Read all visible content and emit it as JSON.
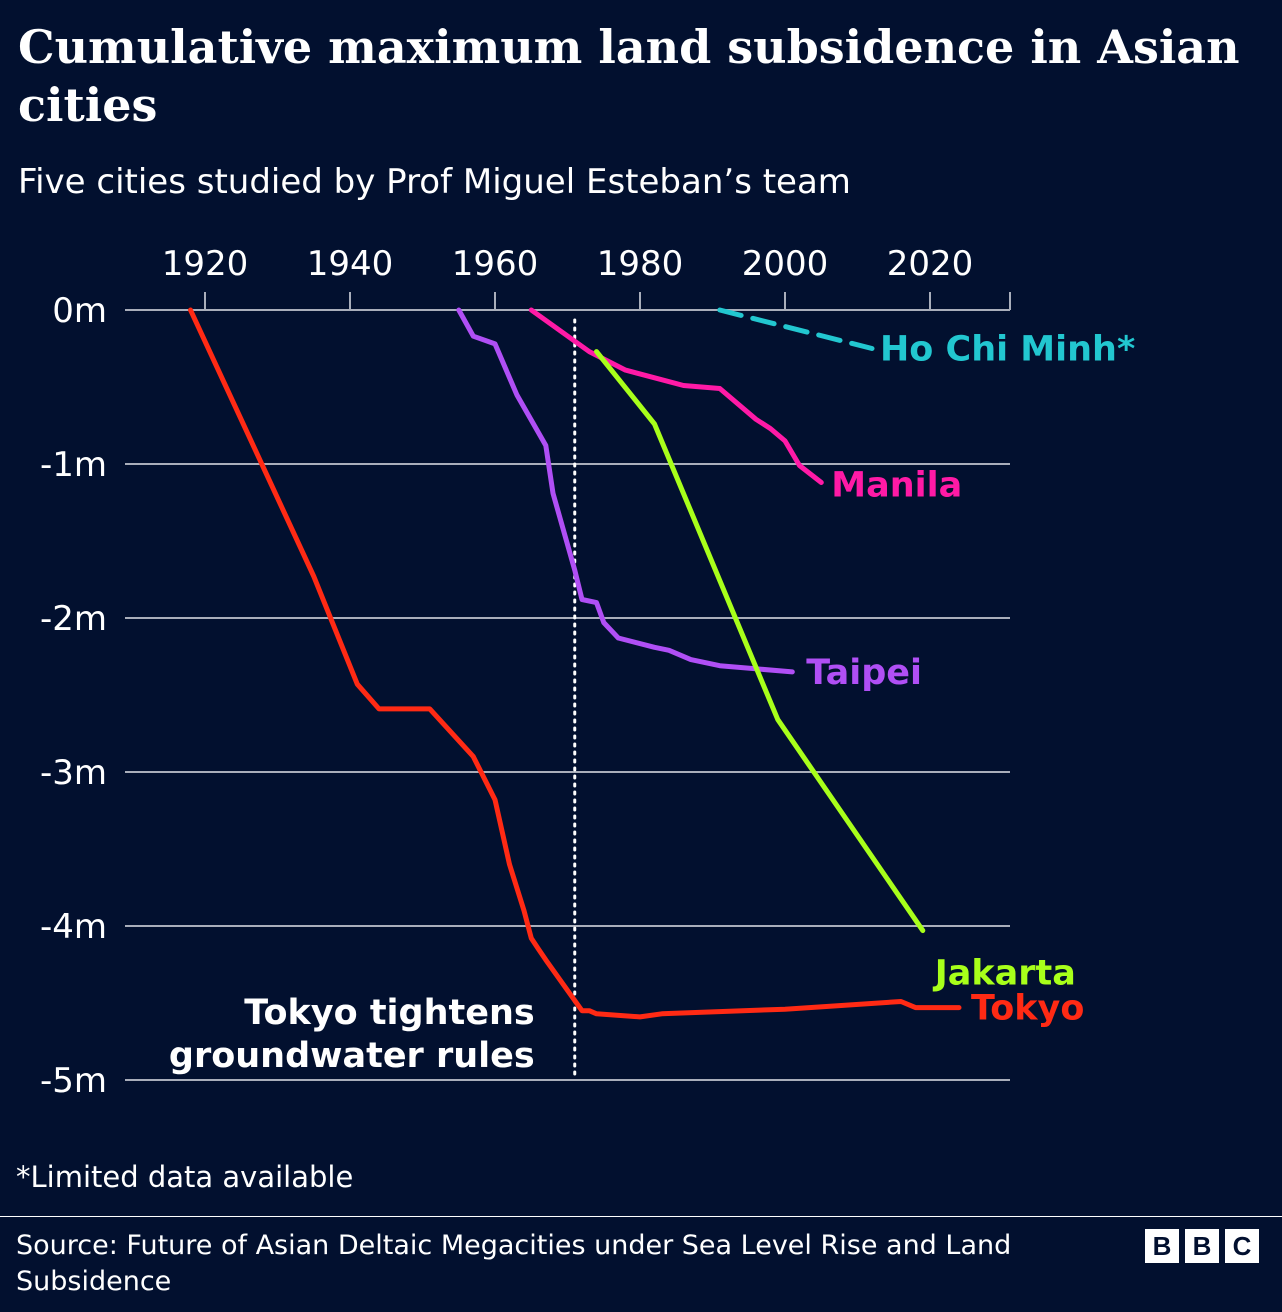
{
  "title": "Cumulative maximum land subsidence in Asian cities",
  "subtitle": "Five cities studied by Prof Miguel Esteban’s team",
  "footnote": "*Limited data available",
  "source": "Source: Future of Asian Deltaic Megacities under Sea Level Rise and Land Subsidence",
  "logo": [
    "B",
    "B",
    "C"
  ],
  "chart_data": {
    "type": "line",
    "title": "Cumulative maximum land subsidence in Asian cities",
    "xlabel": "",
    "ylabel": "",
    "xlim": [
      1908,
      2027
    ],
    "ylim": [
      -5,
      0
    ],
    "x_ticks": [
      1920,
      1940,
      1960,
      1980,
      2000,
      2020
    ],
    "y_ticks": [
      0,
      -1,
      -2,
      -3,
      -4,
      -5
    ],
    "y_tick_labels": [
      "0m",
      "-1m",
      "-2m",
      "-3m",
      "-4m",
      "-5m"
    ],
    "grid": true,
    "series": [
      {
        "name": "Tokyo",
        "color": "#ff2a14",
        "dashed": false,
        "x": [
          1918,
          1935,
          1941,
          1944,
          1951,
          1957,
          1960,
          1962,
          1964,
          1965,
          1966,
          1967,
          1972,
          1973,
          1974,
          1980,
          1983,
          2000,
          2016,
          2018,
          2024
        ],
        "y": [
          0,
          -1.73,
          -2.43,
          -2.59,
          -2.59,
          -2.9,
          -3.18,
          -3.6,
          -3.9,
          -4.08,
          -4.15,
          -4.22,
          -4.55,
          -4.55,
          -4.57,
          -4.59,
          -4.57,
          -4.54,
          -4.49,
          -4.53,
          -4.53
        ]
      },
      {
        "name": "Taipei",
        "color": "#b04ff5",
        "dashed": false,
        "x": [
          1955,
          1957,
          1960,
          1963,
          1967,
          1968,
          1971,
          1972,
          1974,
          1975,
          1977,
          1982,
          1984,
          1987,
          1991,
          2001
        ],
        "y": [
          0,
          -0.17,
          -0.22,
          -0.55,
          -0.88,
          -1.19,
          -1.69,
          -1.88,
          -1.9,
          -2.03,
          -2.13,
          -2.19,
          -2.21,
          -2.27,
          -2.31,
          -2.35
        ]
      },
      {
        "name": "Manila",
        "color": "#ff1aa6",
        "dashed": false,
        "x": [
          1965,
          1973,
          1978,
          1986,
          1991,
          1996,
          1998,
          2000,
          2002,
          2005
        ],
        "y": [
          0,
          -0.27,
          -0.39,
          -0.49,
          -0.51,
          -0.71,
          -0.77,
          -0.85,
          -1.01,
          -1.12
        ]
      },
      {
        "name": "Jakarta",
        "color": "#a8ff1a",
        "dashed": false,
        "x": [
          1974,
          1982,
          1999,
          2019
        ],
        "y": [
          -0.27,
          -0.74,
          -2.66,
          -4.03
        ]
      },
      {
        "name": "Ho Chi Minh*",
        "color": "#22c7d0",
        "dashed": true,
        "x": [
          1991,
          2012
        ],
        "y": [
          0,
          -0.25
        ]
      }
    ],
    "annotations": [
      {
        "text": [
          "Tokyo tightens",
          "groundwater rules"
        ],
        "x": 1971,
        "style": "dotted-vertical-line"
      }
    ]
  }
}
